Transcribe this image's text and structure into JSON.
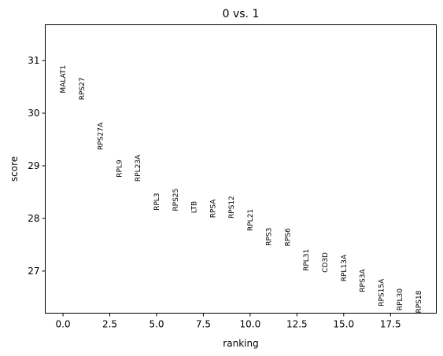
{
  "chart_data": {
    "type": "scatter",
    "title": "0 vs. 1",
    "xlabel": "ranking",
    "ylabel": "score",
    "xlim": [
      -0.95,
      19.95
    ],
    "ylim": [
      26.2,
      31.68
    ],
    "xticks": [
      0.0,
      2.5,
      5.0,
      7.5,
      10.0,
      12.5,
      15.0,
      17.5
    ],
    "xtick_labels": [
      "0.0",
      "2.5",
      "5.0",
      "7.5",
      "10.0",
      "12.5",
      "15.0",
      "17.5"
    ],
    "yticks": [
      27,
      28,
      29,
      30,
      31
    ],
    "ytick_labels": [
      "27",
      "28",
      "29",
      "30",
      "31"
    ],
    "grid": false,
    "points": [
      {
        "x": 0,
        "y": 30.38,
        "label": "MALAT1"
      },
      {
        "x": 1,
        "y": 30.25,
        "label": "RPS27"
      },
      {
        "x": 2,
        "y": 29.3,
        "label": "RPS27A"
      },
      {
        "x": 3,
        "y": 28.78,
        "label": "RPL9"
      },
      {
        "x": 4,
        "y": 28.7,
        "label": "RPL23A"
      },
      {
        "x": 5,
        "y": 28.15,
        "label": "RPL3"
      },
      {
        "x": 6,
        "y": 28.14,
        "label": "RPS25"
      },
      {
        "x": 7,
        "y": 28.1,
        "label": "LTB"
      },
      {
        "x": 8,
        "y": 28.01,
        "label": "RPSA"
      },
      {
        "x": 9,
        "y": 28.0,
        "label": "RPS12"
      },
      {
        "x": 10,
        "y": 27.76,
        "label": "RPL21"
      },
      {
        "x": 11,
        "y": 27.48,
        "label": "RPS3"
      },
      {
        "x": 12,
        "y": 27.47,
        "label": "RPS6"
      },
      {
        "x": 13,
        "y": 27.0,
        "label": "RPL31"
      },
      {
        "x": 14,
        "y": 26.97,
        "label": "CD3D"
      },
      {
        "x": 15,
        "y": 26.8,
        "label": "RPL13A"
      },
      {
        "x": 16,
        "y": 26.6,
        "label": "RPS3A"
      },
      {
        "x": 17,
        "y": 26.33,
        "label": "RPS15A"
      },
      {
        "x": 18,
        "y": 26.25,
        "label": "RPL30"
      },
      {
        "x": 19,
        "y": 26.2,
        "label": "RPS18"
      }
    ]
  }
}
